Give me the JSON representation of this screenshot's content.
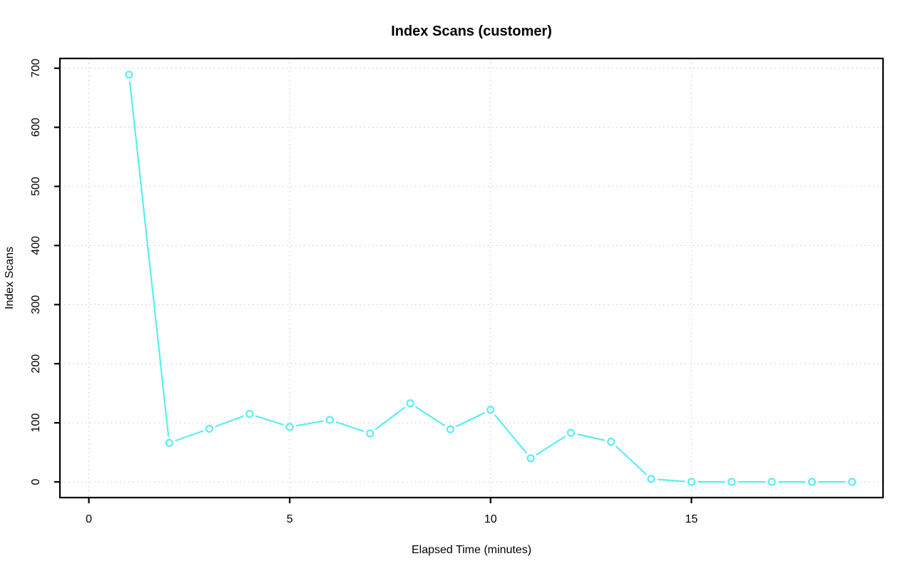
{
  "chart_data": {
    "type": "line",
    "title": "Index Scans (customer)",
    "xlabel": "Elapsed Time (minutes)",
    "ylabel": "Index Scans",
    "x": [
      1,
      2,
      3,
      4,
      5,
      6,
      7,
      8,
      9,
      10,
      11,
      12,
      13,
      14,
      15,
      16,
      17,
      18,
      19
    ],
    "values": [
      689,
      66,
      90,
      115,
      93,
      105,
      82,
      133,
      89,
      122,
      40,
      83,
      68,
      5,
      0,
      0,
      0,
      0,
      0
    ],
    "xticks": [
      0,
      5,
      10,
      15
    ],
    "yticks": [
      0,
      100,
      200,
      300,
      400,
      500,
      600,
      700
    ],
    "xlim": [
      -0.72,
      19.77
    ],
    "ylim": [
      -26.5,
      716.5
    ],
    "grid": "dotted",
    "legend": "none",
    "marker": "open-circle",
    "line_style": "segments-with-gaps-around-markers",
    "line_color": "#5BEDF3",
    "grid_color": "#D2D2D2",
    "axis_color": "#000000",
    "background": "#FFFFFF"
  }
}
